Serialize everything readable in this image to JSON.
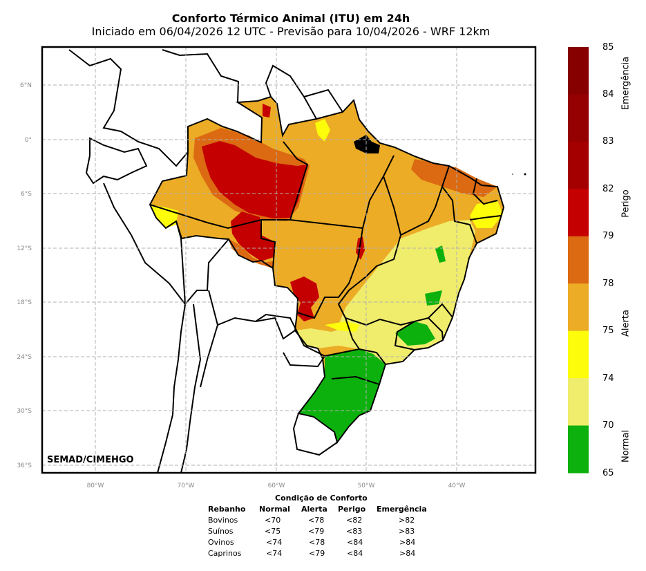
{
  "header": {
    "title": "Conforto Térmico Animal (ITU) em 24h",
    "subtitle": "Iniciado em 06/04/2026 12 UTC - Previsão para 10/04/2026 - WRF 12km"
  },
  "map": {
    "credit": "SEMAD/CIMEHGO",
    "lat_ticks": [
      "6°N",
      "0°",
      "6°S",
      "12°S",
      "18°S",
      "24°S",
      "30°S",
      "36°S"
    ],
    "lon_ticks": [
      "80°W",
      "70°W",
      "60°W",
      "50°W",
      "40°W"
    ],
    "region_colors": {
      "normal": "#0db10d",
      "alerta_low": "#f0ec6c",
      "alerta_mid": "#fcfc0b",
      "alerta_high": "#ecac26",
      "perigo_low": "#dc6a12",
      "perigo_high": "#c40000",
      "emergencia_low": "#a50000",
      "emergencia_mid": "#950000",
      "emergencia_high": "#860000",
      "water_mask": "#000000"
    }
  },
  "colorbar": {
    "ticks": [
      "85",
      "84",
      "83",
      "82",
      "79",
      "78",
      "75",
      "74",
      "70",
      "65"
    ],
    "bands": [
      {
        "from": 84,
        "to": 85,
        "color": "#860000"
      },
      {
        "from": 83,
        "to": 84,
        "color": "#950000"
      },
      {
        "from": 82,
        "to": 83,
        "color": "#a50000"
      },
      {
        "from": 79,
        "to": 82,
        "color": "#c40000"
      },
      {
        "from": 78,
        "to": 79,
        "color": "#dc6a12"
      },
      {
        "from": 75,
        "to": 78,
        "color": "#ecac26"
      },
      {
        "from": 74,
        "to": 75,
        "color": "#fcfc0b"
      },
      {
        "from": 70,
        "to": 74,
        "color": "#f0ec6c"
      },
      {
        "from": 65,
        "to": 70,
        "color": "#0db10d"
      }
    ],
    "categories": [
      "Emergência",
      "Perigo",
      "Alerta",
      "Normal"
    ]
  },
  "comfort_table": {
    "caption": "Condição de Conforto",
    "headers": [
      "Rebanho",
      "Normal",
      "Alerta",
      "Perigo",
      "Emergência"
    ],
    "rows": [
      [
        "Bovinos",
        "<70",
        "<78",
        "<82",
        ">82"
      ],
      [
        "Suínos",
        "<75",
        "<79",
        "<83",
        ">83"
      ],
      [
        "Ovinos",
        "<74",
        "<78",
        "<84",
        ">84"
      ],
      [
        "Caprinos",
        "<74",
        "<79",
        "<84",
        ">84"
      ]
    ]
  }
}
